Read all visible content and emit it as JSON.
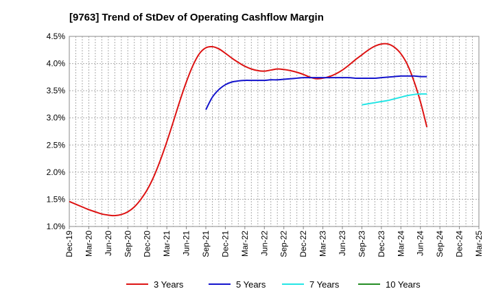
{
  "chart_data": {
    "type": "line",
    "title": "[9763]  Trend of StDev of Operating Cashflow Margin",
    "xlabel": "",
    "ylabel": "",
    "ylim": [
      1.0,
      4.5
    ],
    "y_ticks": [
      "1.0%",
      "1.5%",
      "2.0%",
      "2.5%",
      "3.0%",
      "3.5%",
      "4.0%",
      "4.5%"
    ],
    "x_ticks": [
      "Dec-19",
      "Mar-20",
      "Jun-20",
      "Sep-20",
      "Dec-20",
      "Mar-21",
      "Jun-21",
      "Sep-21",
      "Dec-21",
      "Mar-22",
      "Jun-22",
      "Sep-22",
      "Dec-22",
      "Mar-23",
      "Jun-23",
      "Sep-23",
      "Dec-23",
      "Mar-24",
      "Jun-24",
      "Sep-24",
      "Dec-24",
      "Mar-25"
    ],
    "grid": true,
    "legend_position": "bottom",
    "series": [
      {
        "name": "3 Years",
        "color": "#dd1111",
        "points": [
          [
            "Dec-19",
            1.46
          ],
          [
            "Jan-20",
            1.41
          ],
          [
            "Feb-20",
            1.36
          ],
          [
            "Mar-20",
            1.31
          ],
          [
            "Apr-20",
            1.27
          ],
          [
            "May-20",
            1.23
          ],
          [
            "Jun-20",
            1.21
          ],
          [
            "Jul-20",
            1.2
          ],
          [
            "Aug-20",
            1.22
          ],
          [
            "Sep-20",
            1.27
          ],
          [
            "Oct-20",
            1.36
          ],
          [
            "Nov-20",
            1.5
          ],
          [
            "Dec-20",
            1.68
          ],
          [
            "Jan-21",
            1.92
          ],
          [
            "Feb-21",
            2.22
          ],
          [
            "Mar-21",
            2.56
          ],
          [
            "Apr-21",
            2.93
          ],
          [
            "May-21",
            3.31
          ],
          [
            "Jun-21",
            3.66
          ],
          [
            "Jul-21",
            3.96
          ],
          [
            "Aug-21",
            4.18
          ],
          [
            "Sep-21",
            4.29
          ],
          [
            "Oct-21",
            4.31
          ],
          [
            "Nov-21",
            4.27
          ],
          [
            "Dec-21",
            4.19
          ],
          [
            "Jan-22",
            4.1
          ],
          [
            "Feb-22",
            4.02
          ],
          [
            "Mar-22",
            3.95
          ],
          [
            "Apr-22",
            3.9
          ],
          [
            "May-22",
            3.87
          ],
          [
            "Jun-22",
            3.86
          ],
          [
            "Jul-22",
            3.88
          ],
          [
            "Aug-22",
            3.9
          ],
          [
            "Sep-22",
            3.89
          ],
          [
            "Oct-22",
            3.87
          ],
          [
            "Nov-22",
            3.84
          ],
          [
            "Dec-22",
            3.8
          ],
          [
            "Jan-23",
            3.75
          ],
          [
            "Feb-23",
            3.72
          ],
          [
            "Mar-23",
            3.73
          ],
          [
            "Apr-23",
            3.76
          ],
          [
            "May-23",
            3.81
          ],
          [
            "Jun-23",
            3.88
          ],
          [
            "Jul-23",
            3.97
          ],
          [
            "Aug-23",
            4.07
          ],
          [
            "Sep-23",
            4.16
          ],
          [
            "Oct-23",
            4.25
          ],
          [
            "Nov-23",
            4.32
          ],
          [
            "Dec-23",
            4.36
          ],
          [
            "Jan-24",
            4.36
          ],
          [
            "Feb-24",
            4.3
          ],
          [
            "Mar-24",
            4.18
          ],
          [
            "Apr-24",
            3.98
          ],
          [
            "May-24",
            3.68
          ],
          [
            "Jun-24",
            3.3
          ],
          [
            "Jul-24",
            2.83
          ]
        ]
      },
      {
        "name": "5 Years",
        "color": "#1111cc",
        "points": [
          [
            "Sep-21",
            3.15
          ],
          [
            "Oct-21",
            3.38
          ],
          [
            "Nov-21",
            3.52
          ],
          [
            "Dec-21",
            3.61
          ],
          [
            "Jan-22",
            3.66
          ],
          [
            "Feb-22",
            3.68
          ],
          [
            "Mar-22",
            3.69
          ],
          [
            "Apr-22",
            3.69
          ],
          [
            "May-22",
            3.69
          ],
          [
            "Jun-22",
            3.69
          ],
          [
            "Jul-22",
            3.7
          ],
          [
            "Aug-22",
            3.7
          ],
          [
            "Sep-22",
            3.71
          ],
          [
            "Oct-22",
            3.72
          ],
          [
            "Nov-22",
            3.73
          ],
          [
            "Dec-22",
            3.74
          ],
          [
            "Jan-23",
            3.74
          ],
          [
            "Feb-23",
            3.74
          ],
          [
            "Mar-23",
            3.74
          ],
          [
            "Apr-23",
            3.74
          ],
          [
            "May-23",
            3.74
          ],
          [
            "Jun-23",
            3.74
          ],
          [
            "Jul-23",
            3.74
          ],
          [
            "Aug-23",
            3.73
          ],
          [
            "Sep-23",
            3.73
          ],
          [
            "Oct-23",
            3.73
          ],
          [
            "Nov-23",
            3.73
          ],
          [
            "Dec-23",
            3.74
          ],
          [
            "Jan-24",
            3.75
          ],
          [
            "Feb-24",
            3.76
          ],
          [
            "Mar-24",
            3.77
          ],
          [
            "Apr-24",
            3.77
          ],
          [
            "May-24",
            3.77
          ],
          [
            "Jun-24",
            3.76
          ],
          [
            "Jul-24",
            3.76
          ]
        ]
      },
      {
        "name": "7 Years",
        "color": "#22e5e5",
        "points": [
          [
            "Sep-23",
            3.24
          ],
          [
            "Oct-23",
            3.26
          ],
          [
            "Nov-23",
            3.28
          ],
          [
            "Dec-23",
            3.3
          ],
          [
            "Jan-24",
            3.32
          ],
          [
            "Feb-24",
            3.35
          ],
          [
            "Mar-24",
            3.38
          ],
          [
            "Apr-24",
            3.41
          ],
          [
            "May-24",
            3.43
          ],
          [
            "Jun-24",
            3.44
          ],
          [
            "Jul-24",
            3.44
          ]
        ]
      },
      {
        "name": "10 Years",
        "color": "#228b22",
        "points": []
      }
    ]
  }
}
